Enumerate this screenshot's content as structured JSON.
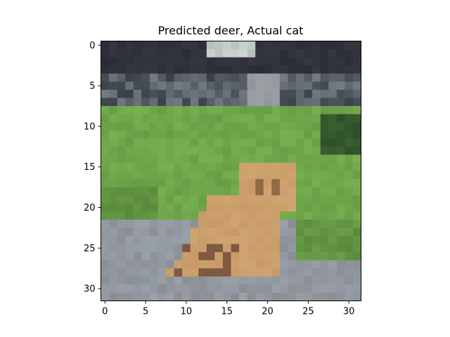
{
  "chart_data": {
    "type": "image",
    "title": "Predicted deer, Actual cat",
    "xlabel": "",
    "ylabel": "",
    "image_size": [
      32,
      32
    ],
    "xlim": [
      -0.5,
      31.5
    ],
    "ylim": [
      31.5,
      -0.5
    ],
    "y_inverted": true,
    "grid": false,
    "x_ticks": [
      0,
      5,
      10,
      15,
      20,
      25,
      30
    ],
    "x_tick_labels": [
      "0",
      "5",
      "10",
      "15",
      "20",
      "25",
      "30"
    ],
    "y_ticks": [
      0,
      5,
      10,
      15,
      20,
      25,
      30
    ],
    "y_tick_labels": [
      "0",
      "5",
      "10",
      "15",
      "20",
      "25",
      "30"
    ],
    "predicted_label": "deer",
    "actual_label": "cat",
    "image_content": "low-resolution photo of an orange tabby cat sitting on grey pavement in front of green grass, dark trees and grey stones at the top",
    "colors": {
      "sky_dark": "#2c2c38",
      "tree_dark": "#3a4048",
      "stone": "#8e959c",
      "grass": "#78b050",
      "grass_dark": "#5a8a3c",
      "cat": "#c89a66",
      "cat_shadow": "#6a4a36",
      "pavement": "#9aa0a8"
    }
  }
}
